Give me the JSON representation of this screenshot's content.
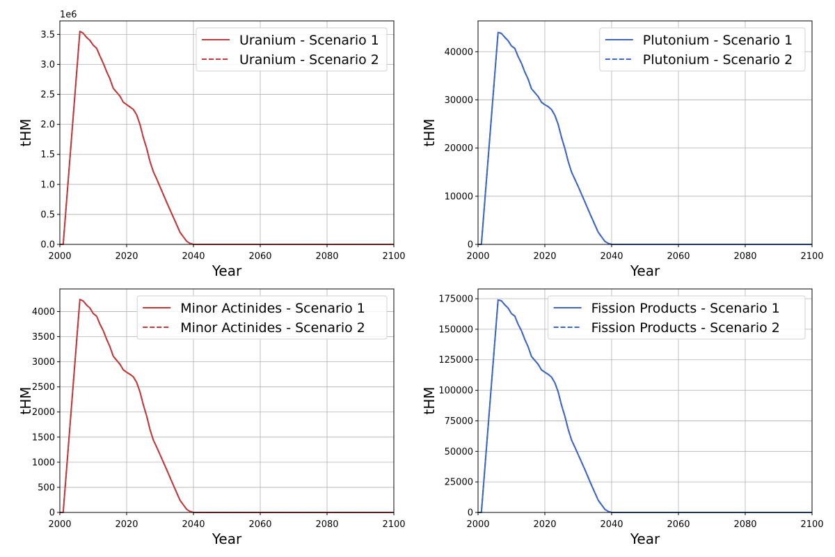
{
  "figure": {
    "panels": [
      {
        "id": "uranium"
      },
      {
        "id": "plutonium"
      },
      {
        "id": "minor-actinides"
      },
      {
        "id": "fission-products"
      }
    ]
  },
  "colors": {
    "red": "#c0393b",
    "blue": "#3d65c4",
    "grid": "#b0b0b0"
  },
  "chart_data": [
    {
      "type": "line",
      "xlabel": "Year",
      "ylabel": "tHM",
      "xlim": [
        2000,
        2100
      ],
      "ylim": [
        0,
        3725000
      ],
      "xticks": [
        "2000",
        "2020",
        "2040",
        "2060",
        "2080",
        "2100"
      ],
      "xtick_values": [
        2000,
        2020,
        2040,
        2060,
        2080,
        2100
      ],
      "yticks": [
        "0.0",
        "0.5",
        "1.0",
        "1.5",
        "2.0",
        "2.5",
        "3.0",
        "3.5"
      ],
      "ytick_values": [
        0,
        500000,
        1000000,
        1500000,
        2000000,
        2500000,
        3000000,
        3500000
      ],
      "offset_label": "1e6",
      "grid": true,
      "legend_position": "top-right",
      "color": "#c0393b",
      "x": [
        2000,
        2001,
        2006,
        2007,
        2008,
        2009,
        2010,
        2011,
        2012,
        2013,
        2014,
        2015,
        2016,
        2018,
        2019,
        2020,
        2021,
        2022,
        2023,
        2024,
        2025,
        2026,
        2027,
        2028,
        2029,
        2030,
        2032,
        2034,
        2036,
        2038,
        2039,
        2040,
        2100
      ],
      "series": [
        {
          "name": "Uranium - Scenario 1",
          "dash": "solid",
          "values": [
            0,
            0,
            3550000,
            3520000,
            3450000,
            3400000,
            3320000,
            3270000,
            3140000,
            3020000,
            2880000,
            2760000,
            2600000,
            2470000,
            2370000,
            2330000,
            2290000,
            2250000,
            2160000,
            2000000,
            1780000,
            1600000,
            1380000,
            1210000,
            1090000,
            960000,
            700000,
            450000,
            200000,
            50000,
            15000,
            0,
            0
          ]
        },
        {
          "name": "Uranium - Scenario 2",
          "dash": "dashed",
          "values": [
            0,
            0,
            3550000,
            3520000,
            3450000,
            3400000,
            3320000,
            3270000,
            3140000,
            3020000,
            2880000,
            2760000,
            2600000,
            2470000,
            2370000,
            2330000,
            2290000,
            2250000,
            2160000,
            2000000,
            1780000,
            1600000,
            1380000,
            1210000,
            1090000,
            960000,
            700000,
            450000,
            200000,
            50000,
            15000,
            0,
            0
          ]
        }
      ]
    },
    {
      "type": "line",
      "xlabel": "Year",
      "ylabel": "tHM",
      "xlim": [
        2000,
        2100
      ],
      "ylim": [
        0,
        46400
      ],
      "xticks": [
        "2000",
        "2020",
        "2040",
        "2060",
        "2080",
        "2100"
      ],
      "xtick_values": [
        2000,
        2020,
        2040,
        2060,
        2080,
        2100
      ],
      "yticks": [
        "0",
        "10000",
        "20000",
        "30000",
        "40000"
      ],
      "ytick_values": [
        0,
        10000,
        20000,
        30000,
        40000
      ],
      "grid": true,
      "legend_position": "top-right",
      "color": "#3d65c4",
      "x": [
        2000,
        2001,
        2006,
        2007,
        2008,
        2009,
        2010,
        2011,
        2012,
        2013,
        2014,
        2015,
        2016,
        2018,
        2019,
        2020,
        2021,
        2022,
        2023,
        2024,
        2025,
        2026,
        2027,
        2028,
        2029,
        2030,
        2032,
        2034,
        2036,
        2038,
        2039,
        2040,
        2100
      ],
      "series": [
        {
          "name": "Plutonium - Scenario 1",
          "dash": "solid",
          "values": [
            0,
            0,
            44000,
            43800,
            43000,
            42300,
            41200,
            40700,
            39000,
            37600,
            35800,
            34300,
            32300,
            30700,
            29500,
            29000,
            28600,
            28000,
            26800,
            24900,
            22200,
            19900,
            17200,
            15000,
            13500,
            12000,
            8800,
            5600,
            2500,
            600,
            200,
            0,
            0
          ]
        },
        {
          "name": "Plutonium - Scenario 2",
          "dash": "dashed",
          "values": [
            0,
            0,
            44000,
            43800,
            43000,
            42300,
            41200,
            40700,
            39000,
            37600,
            35800,
            34300,
            32300,
            30700,
            29500,
            29000,
            28600,
            28000,
            26800,
            24900,
            22200,
            19900,
            17200,
            15000,
            13500,
            12000,
            8800,
            5600,
            2500,
            600,
            200,
            0,
            0
          ]
        }
      ]
    },
    {
      "type": "line",
      "xlabel": "Year",
      "ylabel": "tHM",
      "xlim": [
        2000,
        2100
      ],
      "ylim": [
        0,
        4450
      ],
      "xticks": [
        "2000",
        "2020",
        "2040",
        "2060",
        "2080",
        "2100"
      ],
      "xtick_values": [
        2000,
        2020,
        2040,
        2060,
        2080,
        2100
      ],
      "yticks": [
        "0",
        "500",
        "1000",
        "1500",
        "2000",
        "2500",
        "3000",
        "3500",
        "4000"
      ],
      "ytick_values": [
        0,
        500,
        1000,
        1500,
        2000,
        2500,
        3000,
        3500,
        4000
      ],
      "grid": true,
      "legend_position": "top-right",
      "color": "#c0393b",
      "x": [
        2000,
        2001,
        2006,
        2007,
        2008,
        2009,
        2010,
        2011,
        2012,
        2013,
        2014,
        2015,
        2016,
        2018,
        2019,
        2020,
        2021,
        2022,
        2023,
        2024,
        2025,
        2026,
        2027,
        2028,
        2029,
        2030,
        2032,
        2034,
        2036,
        2038,
        2039,
        2040,
        2100
      ],
      "series": [
        {
          "name": "Minor Actinides - Scenario 1",
          "dash": "solid",
          "values": [
            0,
            0,
            4240,
            4210,
            4130,
            4070,
            3960,
            3910,
            3750,
            3620,
            3450,
            3300,
            3110,
            2950,
            2840,
            2790,
            2750,
            2700,
            2590,
            2400,
            2140,
            1920,
            1650,
            1440,
            1300,
            1150,
            850,
            540,
            240,
            60,
            20,
            0,
            0
          ]
        },
        {
          "name": "Minor Actinides - Scenario 2",
          "dash": "dashed",
          "values": [
            0,
            0,
            4240,
            4210,
            4130,
            4070,
            3960,
            3910,
            3750,
            3620,
            3450,
            3300,
            3110,
            2950,
            2840,
            2790,
            2750,
            2700,
            2590,
            2400,
            2140,
            1920,
            1650,
            1440,
            1300,
            1150,
            850,
            540,
            240,
            60,
            20,
            0,
            0
          ]
        }
      ]
    },
    {
      "type": "line",
      "xlabel": "Year",
      "ylabel": "tHM",
      "xlim": [
        2000,
        2100
      ],
      "ylim": [
        0,
        183000
      ],
      "xticks": [
        "2000",
        "2020",
        "2040",
        "2060",
        "2080",
        "2100"
      ],
      "xtick_values": [
        2000,
        2020,
        2040,
        2060,
        2080,
        2100
      ],
      "yticks": [
        "0",
        "25000",
        "50000",
        "75000",
        "100000",
        "125000",
        "150000",
        "175000"
      ],
      "ytick_values": [
        0,
        25000,
        50000,
        75000,
        100000,
        125000,
        150000,
        175000
      ],
      "grid": true,
      "legend_position": "top-right",
      "color": "#3d65c4",
      "x": [
        2000,
        2001,
        2006,
        2007,
        2008,
        2009,
        2010,
        2011,
        2012,
        2013,
        2014,
        2015,
        2016,
        2018,
        2019,
        2020,
        2021,
        2022,
        2023,
        2024,
        2025,
        2026,
        2027,
        2028,
        2029,
        2030,
        2032,
        2034,
        2036,
        2038,
        2039,
        2040,
        2100
      ],
      "series": [
        {
          "name": "Fission Products - Scenario 1",
          "dash": "solid",
          "values": [
            0,
            0,
            174000,
            173300,
            170000,
            167400,
            162800,
            160800,
            154100,
            148800,
            141700,
            135600,
            127700,
            121300,
            116700,
            114800,
            113100,
            110800,
            106200,
            98600,
            87800,
            78800,
            68000,
            59300,
            53400,
            47300,
            35000,
            22100,
            9900,
            2500,
            800,
            0,
            0
          ]
        },
        {
          "name": "Fission Products - Scenario 2",
          "dash": "dashed",
          "values": [
            0,
            0,
            174000,
            173300,
            170000,
            167400,
            162800,
            160800,
            154100,
            148800,
            141700,
            135600,
            127700,
            121300,
            116700,
            114800,
            113100,
            110800,
            106200,
            98600,
            87800,
            78800,
            68000,
            59300,
            53400,
            47300,
            35000,
            22100,
            9900,
            2500,
            800,
            0,
            0
          ]
        }
      ]
    }
  ]
}
